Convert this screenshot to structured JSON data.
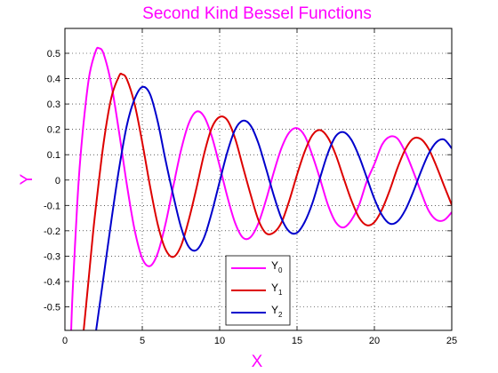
{
  "chart_data": {
    "type": "line",
    "title": "Second Kind Bessel Functions",
    "xlabel": "X",
    "ylabel": "Y",
    "xlim": [
      0,
      25
    ],
    "ylim": [
      -0.6,
      0.55
    ],
    "grid": true,
    "legend_position": "bottom-center",
    "xticks": [
      "0",
      "5",
      "10",
      "15",
      "20",
      "25"
    ],
    "yticks": [
      "0.5",
      "0.4",
      "0.3",
      "0.2",
      "0.1",
      "0",
      "-0.1",
      "-0.2",
      "-0.3",
      "-0.4",
      "-0.5"
    ],
    "series": [
      {
        "name": "Y0",
        "legend_base": "Y",
        "legend_sub": "0",
        "color": "#ff00ff",
        "points": [
          [
            0.4,
            -0.6
          ],
          [
            0.5,
            -0.44
          ],
          [
            0.8,
            -0.09
          ],
          [
            1.0,
            0.088
          ],
          [
            1.3,
            0.279
          ],
          [
            1.6,
            0.42
          ],
          [
            2.0,
            0.51
          ],
          [
            2.2,
            0.52
          ],
          [
            2.5,
            0.498
          ],
          [
            3.0,
            0.377
          ],
          [
            3.5,
            0.189
          ],
          [
            4.0,
            -0.017
          ],
          [
            4.5,
            -0.195
          ],
          [
            5.0,
            -0.309
          ],
          [
            5.5,
            -0.339
          ],
          [
            6.0,
            -0.288
          ],
          [
            6.5,
            -0.173
          ],
          [
            7.0,
            -0.026
          ],
          [
            7.5,
            0.117
          ],
          [
            8.0,
            0.223
          ],
          [
            8.5,
            0.27
          ],
          [
            9.0,
            0.25
          ],
          [
            9.5,
            0.171
          ],
          [
            10.0,
            0.056
          ],
          [
            10.5,
            -0.066
          ],
          [
            11.0,
            -0.169
          ],
          [
            11.5,
            -0.227
          ],
          [
            12.0,
            -0.225
          ],
          [
            12.5,
            -0.171
          ],
          [
            13.0,
            -0.078
          ],
          [
            13.5,
            0.031
          ],
          [
            14.0,
            0.127
          ],
          [
            14.5,
            0.188
          ],
          [
            15.0,
            0.205
          ],
          [
            15.5,
            0.174
          ],
          [
            16.0,
            0.096
          ],
          [
            16.5,
            0.002
          ],
          [
            17.0,
            -0.098
          ],
          [
            17.5,
            -0.166
          ],
          [
            18.0,
            -0.187
          ],
          [
            18.5,
            -0.159
          ],
          [
            19.0,
            -0.1
          ],
          [
            19.5,
            -0.007
          ],
          [
            20.0,
            0.063
          ],
          [
            20.5,
            0.14
          ],
          [
            21.0,
            0.171
          ],
          [
            21.5,
            0.163
          ],
          [
            22.0,
            0.11
          ],
          [
            22.5,
            0.036
          ],
          [
            23.0,
            -0.045
          ],
          [
            23.5,
            -0.12
          ],
          [
            24.0,
            -0.157
          ],
          [
            24.5,
            -0.158
          ],
          [
            25.0,
            -0.127
          ]
        ]
      },
      {
        "name": "Y1",
        "legend_base": "Y",
        "legend_sub": "1",
        "color": "#dd0000",
        "points": [
          [
            1.2,
            -0.6
          ],
          [
            1.5,
            -0.412
          ],
          [
            1.8,
            -0.22
          ],
          [
            2.0,
            -0.107
          ],
          [
            2.5,
            0.146
          ],
          [
            3.0,
            0.325
          ],
          [
            3.5,
            0.41
          ],
          [
            3.7,
            0.417
          ],
          [
            4.0,
            0.398
          ],
          [
            4.5,
            0.301
          ],
          [
            5.0,
            0.148
          ],
          [
            5.5,
            -0.024
          ],
          [
            6.0,
            -0.175
          ],
          [
            6.5,
            -0.273
          ],
          [
            7.0,
            -0.303
          ],
          [
            7.5,
            -0.26
          ],
          [
            8.0,
            -0.158
          ],
          [
            8.5,
            -0.032
          ],
          [
            9.0,
            0.104
          ],
          [
            9.5,
            0.207
          ],
          [
            10.0,
            0.249
          ],
          [
            10.5,
            0.236
          ],
          [
            11.0,
            0.164
          ],
          [
            11.5,
            0.053
          ],
          [
            12.0,
            -0.057
          ],
          [
            12.5,
            -0.157
          ],
          [
            13.0,
            -0.21
          ],
          [
            13.5,
            -0.207
          ],
          [
            14.0,
            -0.167
          ],
          [
            14.5,
            -0.081
          ],
          [
            15.0,
            0.021
          ],
          [
            15.5,
            0.113
          ],
          [
            16.0,
            0.178
          ],
          [
            16.5,
            0.197
          ],
          [
            17.0,
            0.167
          ],
          [
            17.5,
            0.1
          ],
          [
            18.0,
            0.01
          ],
          [
            18.5,
            -0.078
          ],
          [
            19.0,
            -0.147
          ],
          [
            19.5,
            -0.178
          ],
          [
            20.0,
            -0.166
          ],
          [
            20.5,
            -0.115
          ],
          [
            21.0,
            -0.039
          ],
          [
            21.5,
            0.049
          ],
          [
            22.0,
            0.121
          ],
          [
            22.5,
            0.163
          ],
          [
            23.0,
            0.162
          ],
          [
            23.5,
            0.124
          ],
          [
            24.0,
            0.056
          ],
          [
            24.5,
            -0.022
          ],
          [
            25.0,
            -0.098
          ]
        ]
      },
      {
        "name": "Y2",
        "legend_base": "Y",
        "legend_sub": "2",
        "color": "#0000cc",
        "points": [
          [
            2.0,
            -0.6
          ],
          [
            2.5,
            -0.381
          ],
          [
            3.0,
            -0.16
          ],
          [
            3.5,
            0.045
          ],
          [
            4.0,
            0.215
          ],
          [
            4.5,
            0.319
          ],
          [
            5.0,
            0.367
          ],
          [
            5.5,
            0.339
          ],
          [
            6.0,
            0.23
          ],
          [
            6.5,
            0.079
          ],
          [
            7.0,
            -0.06
          ],
          [
            7.5,
            -0.185
          ],
          [
            8.0,
            -0.263
          ],
          [
            8.5,
            -0.276
          ],
          [
            9.0,
            -0.226
          ],
          [
            9.5,
            -0.126
          ],
          [
            10.0,
            -0.006
          ],
          [
            10.5,
            0.111
          ],
          [
            11.0,
            0.199
          ],
          [
            11.5,
            0.234
          ],
          [
            12.0,
            0.215
          ],
          [
            12.5,
            0.146
          ],
          [
            13.0,
            0.045
          ],
          [
            13.5,
            -0.061
          ],
          [
            14.0,
            -0.152
          ],
          [
            14.5,
            -0.203
          ],
          [
            15.0,
            -0.208
          ],
          [
            15.5,
            -0.165
          ],
          [
            16.0,
            -0.09
          ],
          [
            16.5,
            0.011
          ],
          [
            17.0,
            0.107
          ],
          [
            17.5,
            0.173
          ],
          [
            18.0,
            0.189
          ],
          [
            18.5,
            0.16
          ],
          [
            19.0,
            0.095
          ],
          [
            19.5,
            0.011
          ],
          [
            20.0,
            -0.074
          ],
          [
            20.5,
            -0.139
          ],
          [
            21.0,
            -0.172
          ],
          [
            21.5,
            -0.163
          ],
          [
            22.0,
            -0.118
          ],
          [
            22.5,
            -0.048
          ],
          [
            23.0,
            0.032
          ],
          [
            23.5,
            0.103
          ],
          [
            24.0,
            0.149
          ],
          [
            24.5,
            0.16
          ],
          [
            25.0,
            0.125
          ]
        ]
      }
    ]
  }
}
